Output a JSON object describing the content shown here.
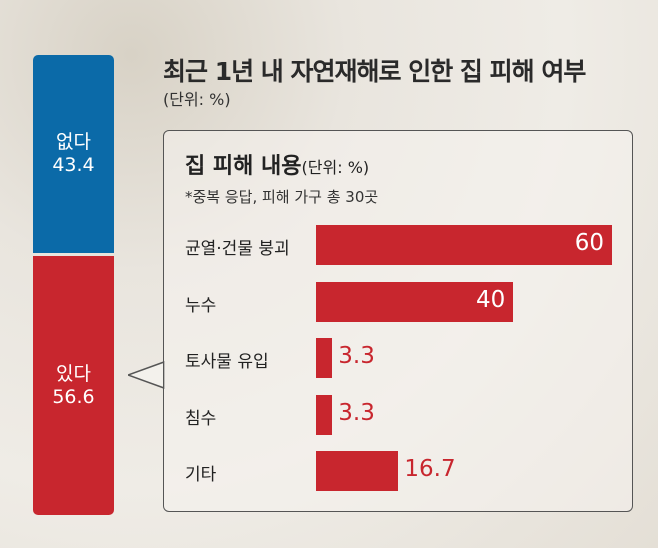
{
  "title": "최근 1년 내 자연재해로 인한 집 피해 여부",
  "unit": "(단위: %)",
  "colors": {
    "no": "#0b6aa8",
    "yes": "#c8262e"
  },
  "chart_data": [
    {
      "type": "bar",
      "stacked": true,
      "title": "최근 1년 내 자연재해로 인한 집 피해 여부",
      "unit": "(단위: %)",
      "series": [
        {
          "name": "없다",
          "value": 43.4,
          "value_label": "43.4"
        },
        {
          "name": "있다",
          "value": 56.6,
          "value_label": "56.6"
        }
      ]
    },
    {
      "type": "bar",
      "orientation": "horizontal",
      "title": "집 피해 내용",
      "unit": "(단위: %)",
      "note": "*중복 응답, 피해 가구 총 30곳",
      "categories": [
        "균열·건물 붕괴",
        "누수",
        "토사물 유입",
        "침수",
        "기타"
      ],
      "values": [
        60,
        40,
        3.3,
        3.3,
        16.7
      ],
      "value_labels": [
        "60",
        "40",
        "3.3",
        "3.3",
        "16.7"
      ],
      "xlim": [
        0,
        60
      ]
    }
  ]
}
